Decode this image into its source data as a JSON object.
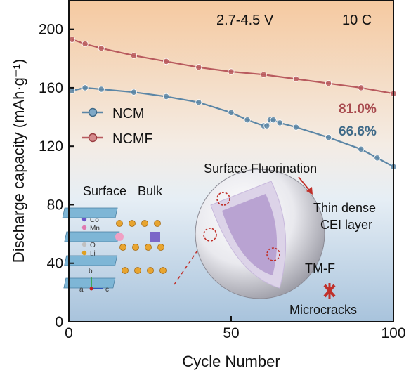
{
  "chart_data": {
    "type": "line",
    "xlabel": "Cycle Number",
    "ylabel": "Discharge capacity (mAh·g⁻¹)",
    "xlim": [
      0,
      100
    ],
    "ylim": [
      0,
      220
    ],
    "xticks": [
      0,
      50,
      100
    ],
    "yticks": [
      0,
      40,
      80,
      120,
      160,
      200
    ],
    "grid": false,
    "legend_position": "middle-left",
    "series": [
      {
        "name": "NCM",
        "color": "#5b86a6",
        "x": [
          1,
          5,
          10,
          20,
          30,
          40,
          50,
          55,
          60,
          61,
          62,
          63,
          65,
          70,
          80,
          90,
          95,
          100
        ],
        "y": [
          158,
          160,
          159,
          157,
          154,
          150,
          143,
          138,
          134,
          134,
          138,
          138,
          136,
          133,
          126,
          118,
          112,
          106
        ]
      },
      {
        "name": "NCMF",
        "color": "#b85a5e",
        "x": [
          1,
          5,
          10,
          20,
          30,
          40,
          50,
          60,
          70,
          80,
          90,
          100
        ],
        "y": [
          193,
          190,
          187,
          182,
          178,
          174,
          171,
          169,
          166,
          163,
          160,
          156
        ]
      }
    ],
    "annotations": {
      "condition_voltage": "2.7-4.5 V",
      "condition_rate": "10 C",
      "ncmf_retention": "81.0%",
      "ncm_retention": "66.6%"
    }
  },
  "inset": {
    "surface_label": "Surface",
    "bulk_label": "Bulk",
    "elements": [
      {
        "symbol": "Ni",
        "color": "#6a9cc0"
      },
      {
        "symbol": "Co",
        "color": "#6a55c8"
      },
      {
        "symbol": "Mn",
        "color": "#e07ab0"
      },
      {
        "symbol": "F",
        "color": "#d23a2a"
      },
      {
        "symbol": "O",
        "color": "#c0c0c0"
      },
      {
        "symbol": "Li",
        "color": "#e0a020"
      }
    ],
    "axis_b": "b",
    "axis_a": "a",
    "axis_c": "c",
    "surface_fluorination": "Surface Fluorination",
    "thin_dense": "Thin dense",
    "cei_layer": "CEI layer",
    "tm_f": "TM-F",
    "microcracks": "Microcracks"
  },
  "colors": {
    "top_background": "#f5c9a0",
    "bottom_background": "#a8c3dc",
    "particle_core": "#b9a3d2",
    "particle_shell": "#dcd3e8"
  }
}
